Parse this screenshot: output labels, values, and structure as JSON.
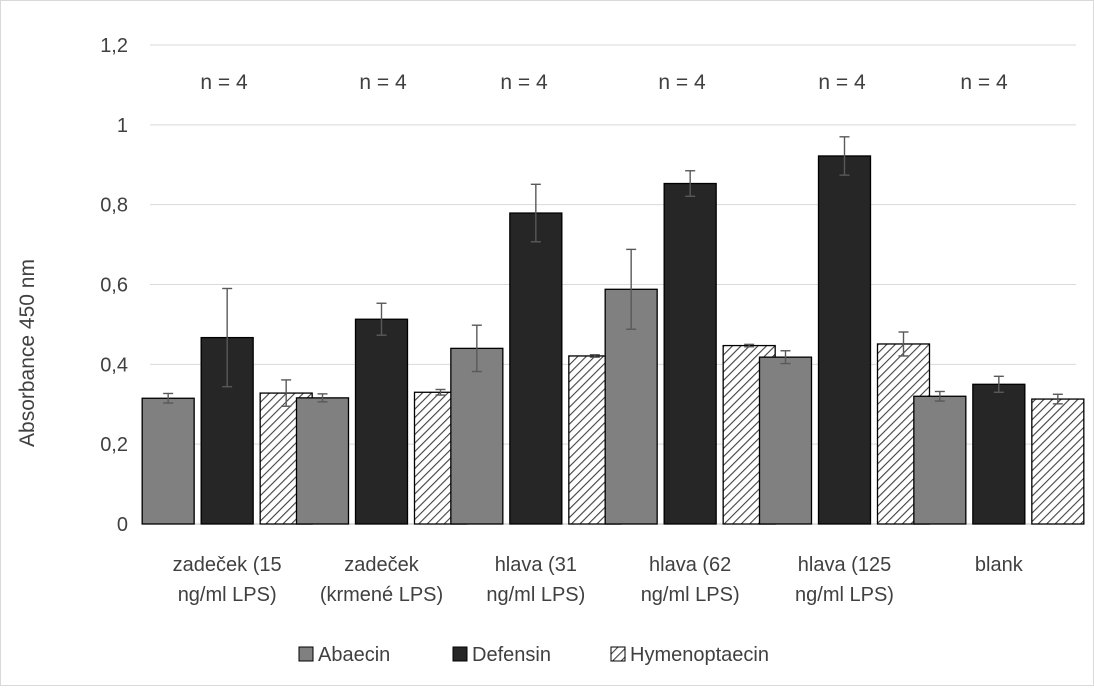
{
  "chart_data": {
    "type": "bar",
    "title": "",
    "xlabel": "",
    "ylabel": "Absorbance 450 nm",
    "ylim": [
      0,
      1.2
    ],
    "yticks": [
      "0",
      "0,2",
      "0,4",
      "0,6",
      "0,8",
      "1",
      "1,2"
    ],
    "grid": true,
    "legend_position": "bottom",
    "categories": [
      [
        "zadeček (15",
        "ng/ml LPS)"
      ],
      [
        "zadeček",
        "(krmené LPS)"
      ],
      [
        "hlava (31",
        "ng/ml LPS)"
      ],
      [
        "hlava (62",
        "ng/ml LPS)"
      ],
      [
        "hlava (125",
        "ng/ml LPS)"
      ],
      [
        "blank"
      ]
    ],
    "annotations": [
      "n = 4",
      "n = 4",
      "n = 4",
      "n = 4",
      "n = 4",
      "n = 4"
    ],
    "series": [
      {
        "name": "Abaecin",
        "fill": "solid",
        "color": "#808080",
        "values": [
          0.315,
          0.316,
          0.44,
          0.588,
          0.418,
          0.32
        ],
        "errors": [
          0.012,
          0.01,
          0.058,
          0.1,
          0.016,
          0.012
        ]
      },
      {
        "name": "Defensin",
        "fill": "solid",
        "color": "#262626",
        "values": [
          0.467,
          0.513,
          0.779,
          0.853,
          0.922,
          0.35
        ],
        "errors": [
          0.123,
          0.04,
          0.072,
          0.032,
          0.048,
          0.02
        ]
      },
      {
        "name": "Hymenoptaecin",
        "fill": "hatch",
        "color": "#404040",
        "values": [
          0.328,
          0.33,
          0.421,
          0.447,
          0.451,
          0.313
        ],
        "errors": [
          0.033,
          0.007,
          0.003,
          0.003,
          0.03,
          0.012
        ]
      }
    ]
  }
}
